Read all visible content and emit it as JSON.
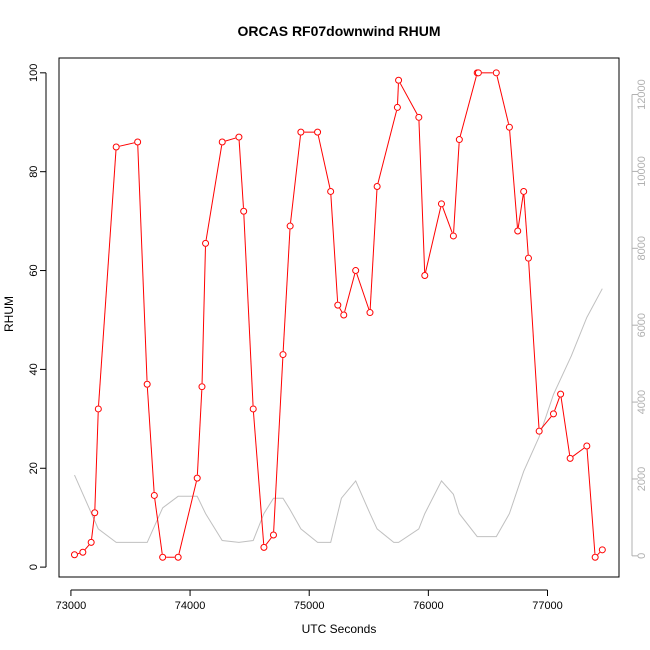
{
  "chart_data": {
    "type": "line",
    "title": "ORCAS RF07downwind RHUM",
    "xlabel": "UTC Seconds",
    "ylabel": "RHUM",
    "xlim": [
      72900,
      77600
    ],
    "ylim": [
      -2,
      103
    ],
    "y2lim": [
      -550,
      12950
    ],
    "x_ticks": [
      73000,
      74000,
      75000,
      76000,
      77000
    ],
    "y_ticks": [
      0,
      20,
      40,
      60,
      80,
      100
    ],
    "y2_ticks": [
      0,
      2000,
      4000,
      6000,
      8000,
      10000,
      12000
    ],
    "grid": false,
    "colors": {
      "rhum": "#ff0000",
      "secondary": "#c0c0c0",
      "secondary_axis": "#b0b0b0"
    },
    "series": [
      {
        "axis": "left",
        "x": [
          73030,
          73100,
          73170,
          73200,
          73230,
          73380,
          73560,
          73640,
          73700,
          73770,
          73900,
          74060,
          74100,
          74130,
          74270,
          74410,
          74450,
          74530,
          74620,
          74700,
          74780,
          74840,
          74930,
          75070,
          75180,
          75240,
          75290,
          75390,
          75510,
          75570,
          75740,
          75750,
          75920,
          75970,
          76110,
          76210,
          76260,
          76410,
          76420,
          76570,
          76680,
          76750,
          76800,
          76840,
          76930,
          77050,
          77110,
          77190,
          77330,
          77400,
          77460
        ],
        "y": [
          2.5,
          3,
          5,
          11,
          32,
          85,
          86,
          37,
          14.5,
          2,
          2,
          18,
          36.5,
          65.5,
          86,
          87,
          72,
          32,
          4,
          6.5,
          43,
          69,
          88,
          88,
          76,
          53,
          51,
          60,
          51.5,
          77,
          93,
          98.5,
          91,
          59,
          73.5,
          67,
          86.5,
          100,
          100,
          100,
          89,
          68,
          76,
          62.5,
          27.5,
          31,
          35,
          22,
          24.5,
          2,
          3.5
        ]
      },
      {
        "axis": "right",
        "x": [
          73030,
          73230,
          73380,
          73560,
          73640,
          73770,
          73900,
          74060,
          74130,
          74270,
          74410,
          74530,
          74620,
          74700,
          74780,
          74840,
          74930,
          75070,
          75180,
          75270,
          75390,
          75510,
          75570,
          75710,
          75750,
          75920,
          75970,
          76110,
          76210,
          76260,
          76410,
          76570,
          76680,
          76800,
          76930,
          77050,
          77200,
          77330,
          77460
        ],
        "y": [
          2100,
          700,
          350,
          350,
          350,
          1250,
          1550,
          1550,
          1100,
          400,
          350,
          400,
          1100,
          1500,
          1500,
          1200,
          700,
          350,
          350,
          1500,
          1950,
          1100,
          700,
          350,
          350,
          700,
          1100,
          1950,
          1600,
          1100,
          500,
          500,
          1100,
          2200,
          3100,
          4200,
          5200,
          6200,
          6950
        ]
      }
    ]
  }
}
